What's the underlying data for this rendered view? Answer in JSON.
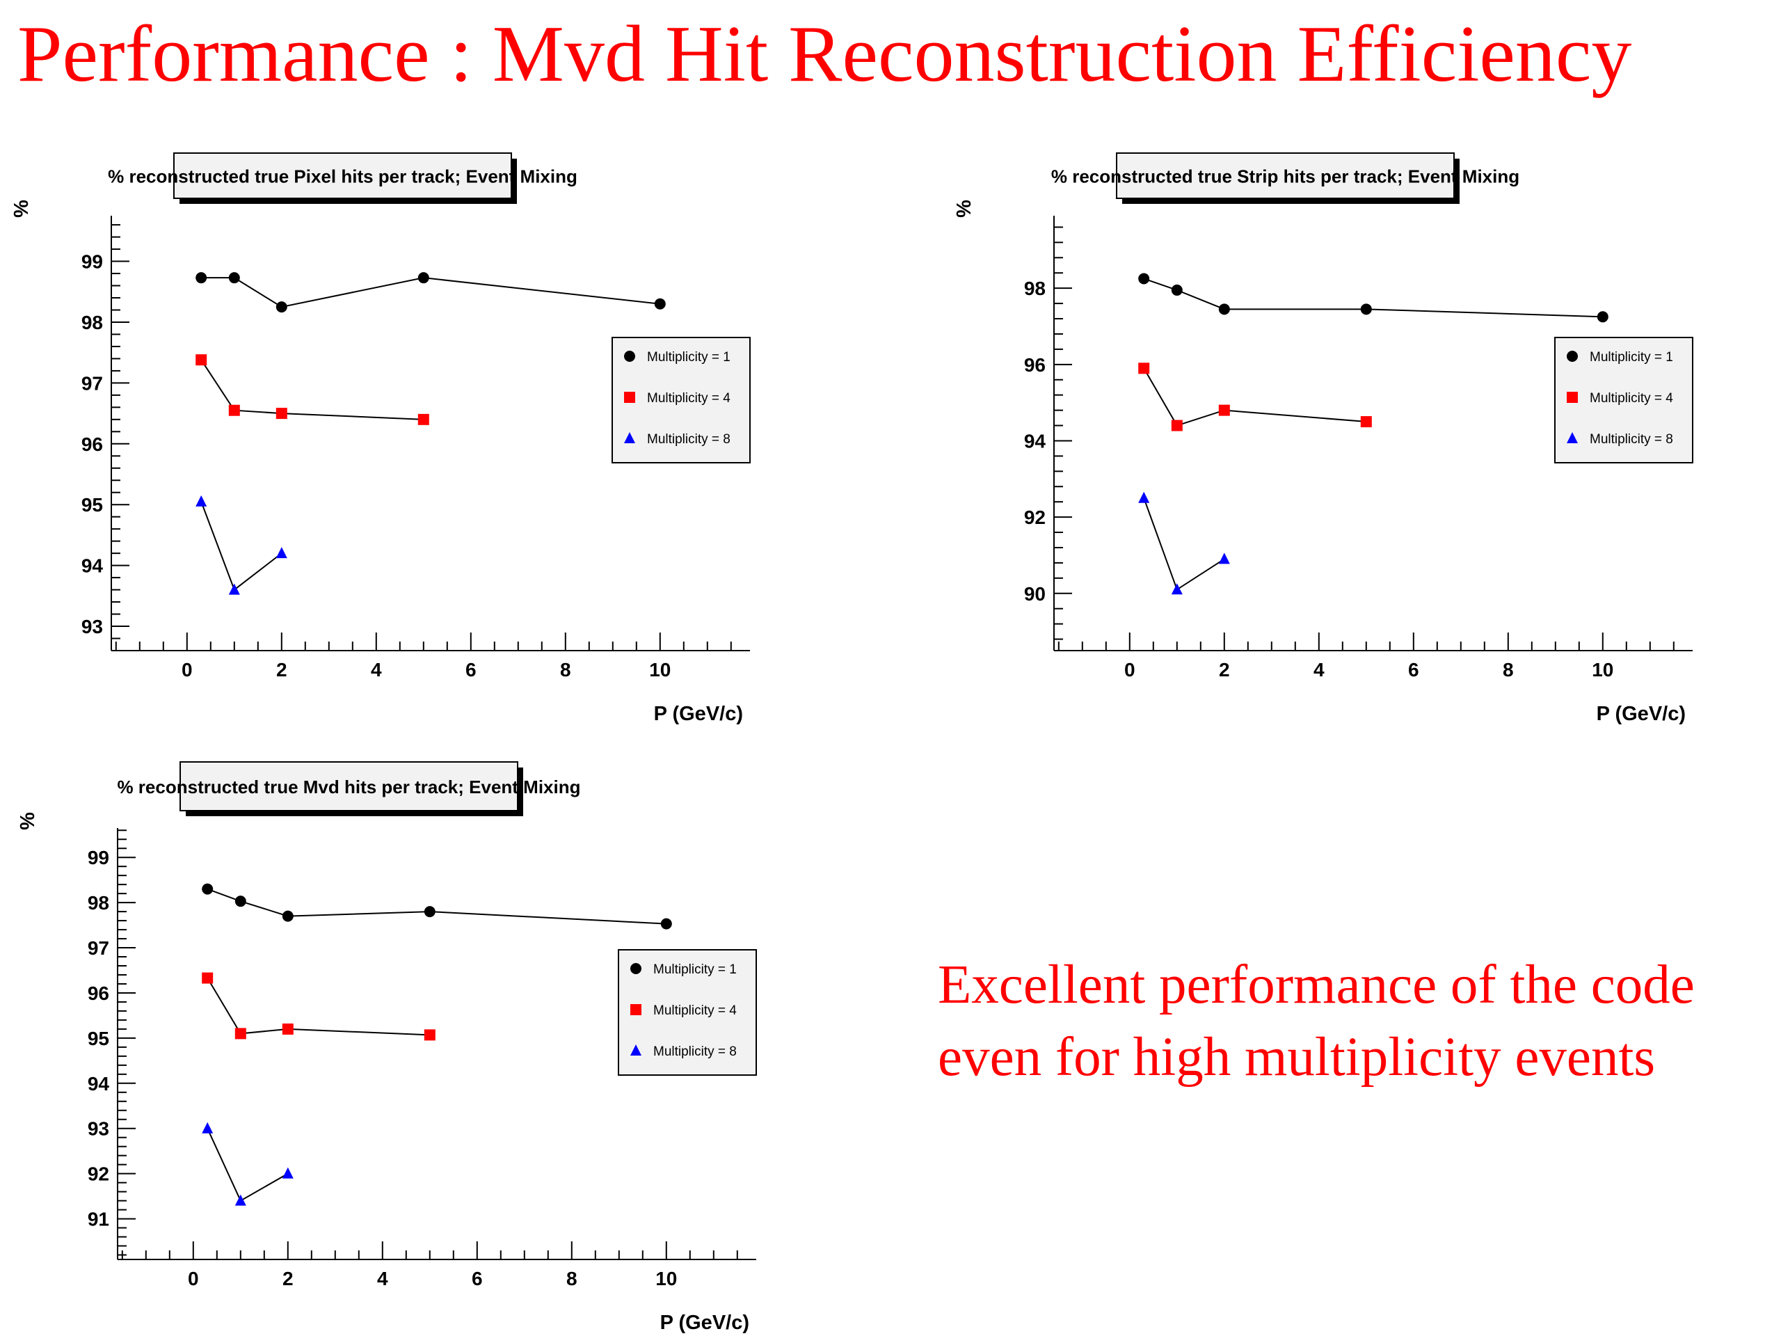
{
  "slide": {
    "title": "Performance : Mvd Hit Reconstruction Efficiency",
    "conclusion": "Excellent performance of the code even for high multiplicity events"
  },
  "chart_data": [
    {
      "type": "scatter",
      "title": "% reconstructed true Pixel hits per track; Event Mixing",
      "xlabel": "P (GeV/c)",
      "ylabel": "%",
      "xlim": [
        -1.6,
        11.9
      ],
      "ylim": [
        92.6,
        99.75
      ],
      "xticks": [
        0,
        2,
        4,
        6,
        8,
        10
      ],
      "yticks": [
        93,
        94,
        95,
        96,
        97,
        98,
        99
      ],
      "legend_position": "right",
      "series": [
        {
          "name": "Multiplicity = 1",
          "marker": "circle",
          "color": "#000000",
          "x": [
            0.3,
            1,
            2,
            5,
            10
          ],
          "y": [
            98.73,
            98.73,
            98.25,
            98.73,
            98.3
          ]
        },
        {
          "name": "Multiplicity = 4",
          "marker": "square",
          "color": "#ff0000",
          "x": [
            0.3,
            1,
            2,
            5
          ],
          "y": [
            97.38,
            96.55,
            96.5,
            96.4
          ]
        },
        {
          "name": "Multiplicity = 8",
          "marker": "triangle",
          "color": "#0000ff",
          "x": [
            0.3,
            1,
            2
          ],
          "y": [
            95.05,
            93.6,
            94.2
          ]
        }
      ]
    },
    {
      "type": "scatter",
      "title": "% reconstructed true Strip hits per track; Event Mixing",
      "xlabel": "P (GeV/c)",
      "ylabel": "%",
      "xlim": [
        -1.6,
        11.9
      ],
      "ylim": [
        88.5,
        99.9
      ],
      "xticks": [
        0,
        2,
        4,
        6,
        8,
        10
      ],
      "yticks": [
        90,
        92,
        94,
        96,
        98
      ],
      "legend_position": "right",
      "series": [
        {
          "name": "Multiplicity = 1",
          "marker": "circle",
          "color": "#000000",
          "x": [
            0.3,
            1,
            2,
            5,
            10
          ],
          "y": [
            98.25,
            97.95,
            97.45,
            97.45,
            97.25
          ]
        },
        {
          "name": "Multiplicity = 4",
          "marker": "square",
          "color": "#ff0000",
          "x": [
            0.3,
            1,
            2,
            5
          ],
          "y": [
            95.9,
            94.4,
            94.8,
            94.5
          ]
        },
        {
          "name": "Multiplicity = 8",
          "marker": "triangle",
          "color": "#0000ff",
          "x": [
            0.3,
            1,
            2
          ],
          "y": [
            92.5,
            90.1,
            90.9
          ]
        }
      ]
    },
    {
      "type": "scatter",
      "title": "% reconstructed true Mvd hits per track; Event Mixing",
      "xlabel": "P (GeV/c)",
      "ylabel": "%",
      "xlim": [
        -1.6,
        11.9
      ],
      "ylim": [
        90.1,
        99.65
      ],
      "xticks": [
        0,
        2,
        4,
        6,
        8,
        10
      ],
      "yticks": [
        91,
        92,
        93,
        94,
        95,
        96,
        97,
        98,
        99
      ],
      "legend_position": "right",
      "series": [
        {
          "name": "Multiplicity = 1",
          "marker": "circle",
          "color": "#000000",
          "x": [
            0.3,
            1,
            2,
            5,
            10
          ],
          "y": [
            98.3,
            98.03,
            97.7,
            97.8,
            97.53
          ]
        },
        {
          "name": "Multiplicity = 4",
          "marker": "square",
          "color": "#ff0000",
          "x": [
            0.3,
            1,
            2,
            5
          ],
          "y": [
            96.33,
            95.1,
            95.2,
            95.07
          ]
        },
        {
          "name": "Multiplicity = 8",
          "marker": "triangle",
          "color": "#0000ff",
          "x": [
            0.3,
            1,
            2
          ],
          "y": [
            93.0,
            91.4,
            92.0
          ]
        }
      ]
    }
  ]
}
